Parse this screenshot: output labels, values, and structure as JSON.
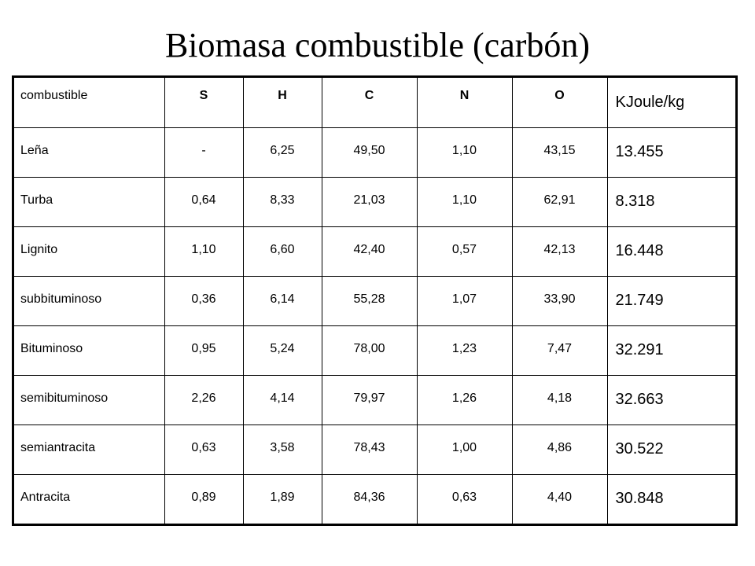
{
  "slide": {
    "title": "Biomasa combustible (carbón)"
  },
  "table": {
    "headers": [
      "combustible",
      "S",
      "H",
      "C",
      "N",
      "O",
      "KJoule/kg"
    ],
    "rows": [
      [
        "Leña",
        "-",
        "6,25",
        "49,50",
        "1,10",
        "43,15",
        "13.455"
      ],
      [
        "Turba",
        "0,64",
        "8,33",
        "21,03",
        "1,10",
        "62,91",
        "8.318"
      ],
      [
        "Lignito",
        "1,10",
        "6,60",
        "42,40",
        "0,57",
        "42,13",
        "16.448"
      ],
      [
        "subbituminoso",
        "0,36",
        "6,14",
        "55,28",
        "1,07",
        "33,90",
        "21.749"
      ],
      [
        "Bituminoso",
        "0,95",
        "5,24",
        "78,00",
        "1,23",
        "7,47",
        "32.291"
      ],
      [
        "semibituminoso",
        "2,26",
        "4,14",
        "79,97",
        "1,26",
        "4,18",
        "32.663"
      ],
      [
        "semiantracita",
        "0,63",
        "3,58",
        "78,43",
        "1,00",
        "4,86",
        "30.522"
      ],
      [
        "Antracita",
        "0,89",
        "1,89",
        "84,36",
        "0,63",
        "4,40",
        "30.848"
      ]
    ]
  }
}
